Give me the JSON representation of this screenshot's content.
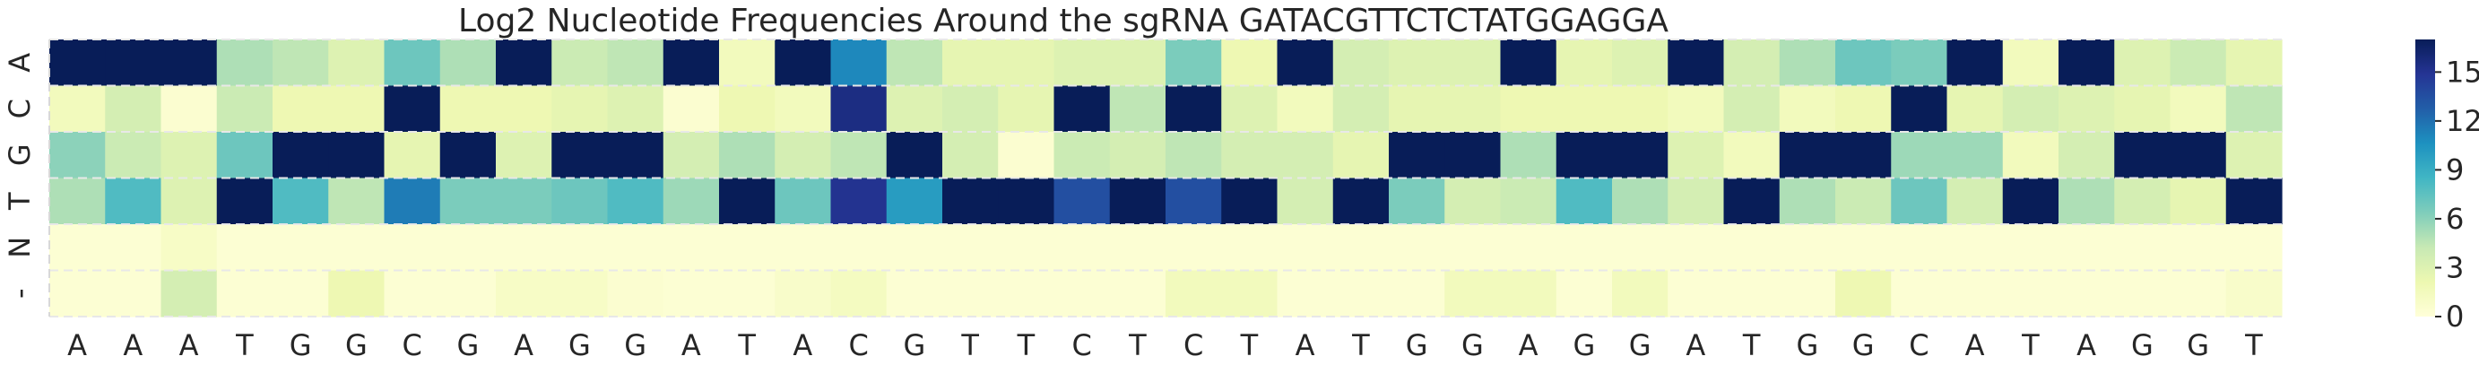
{
  "chart_data": {
    "type": "heatmap",
    "title": "Log2 Nucleotide Frequencies Around the sgRNA GATACGTTCTCTATGGAGGA",
    "xlabel": "",
    "ylabel": "",
    "x_tick_labels": [
      "A",
      "A",
      "A",
      "T",
      "G",
      "G",
      "C",
      "G",
      "A",
      "G",
      "G",
      "A",
      "T",
      "A",
      "C",
      "G",
      "T",
      "T",
      "C",
      "T",
      "C",
      "T",
      "A",
      "T",
      "G",
      "G",
      "A",
      "G",
      "G",
      "A",
      "T",
      "G",
      "G",
      "C",
      "A",
      "T",
      "A",
      "G",
      "G",
      "T"
    ],
    "y_tick_labels": [
      "A",
      "C",
      "G",
      "T",
      "N",
      "-"
    ],
    "colorbar": {
      "min": 0,
      "max": 17,
      "ticks": [
        0,
        3,
        6,
        9,
        12,
        15
      ],
      "tick_labels": [
        "0",
        "3",
        "6",
        "9",
        "12",
        "15"
      ],
      "colormap": "YlGnBu"
    },
    "values": [
      [
        17,
        17,
        17,
        5,
        4.5,
        3,
        7,
        5,
        17,
        4,
        4.5,
        17,
        1.5,
        17,
        11,
        4.5,
        2.5,
        2.5,
        3,
        3,
        6.5,
        2,
        17,
        3.5,
        3,
        3,
        17,
        2.5,
        3,
        17,
        3.5,
        5,
        7,
        6.5,
        17,
        1.5,
        17,
        3,
        4,
        2.5
      ],
      [
        1.5,
        3.5,
        0.5,
        4,
        2,
        2,
        17,
        2,
        2,
        2.5,
        3,
        0.5,
        2,
        1.5,
        15.5,
        3,
        3.5,
        2.5,
        17,
        4.5,
        17,
        3,
        1.5,
        3.5,
        2.5,
        2.5,
        2,
        2,
        2,
        1.5,
        3.5,
        1.5,
        2,
        17,
        2.5,
        3.5,
        3,
        2.5,
        1.5,
        4.5
      ],
      [
        6,
        4,
        3,
        7,
        17,
        17,
        2.5,
        17,
        3,
        17,
        17,
        3.5,
        5,
        3.5,
        4.5,
        17,
        3.5,
        0.5,
        4,
        3.5,
        4.5,
        3.5,
        3.5,
        2.5,
        17,
        17,
        5,
        17,
        17,
        3,
        1.5,
        17,
        17,
        5.5,
        5.5,
        1.5,
        3.5,
        17,
        17,
        3
      ],
      [
        5,
        8,
        3,
        17,
        8,
        4.5,
        11.5,
        6.5,
        6.5,
        7,
        8,
        5.5,
        17,
        7,
        15,
        10,
        17,
        17,
        13.5,
        17,
        13.5,
        17,
        3.5,
        17,
        6.5,
        3.5,
        4,
        8,
        5,
        3.5,
        17,
        5,
        4,
        7,
        3.5,
        17,
        5,
        3.5,
        2.5,
        17
      ],
      [
        0.3,
        0.3,
        1,
        0.3,
        0.3,
        0.3,
        0.3,
        0.3,
        0.3,
        0.3,
        0.3,
        0.3,
        0.3,
        0.3,
        0.3,
        0.3,
        0.3,
        0.3,
        0.3,
        0.3,
        0.3,
        0.3,
        0.3,
        0.3,
        0.3,
        0.3,
        0.3,
        0.3,
        0.3,
        0.3,
        0.3,
        0.3,
        0.3,
        0.3,
        0.3,
        0.3,
        0.3,
        0.3,
        0.3,
        0.3
      ],
      [
        0.3,
        0.3,
        3.5,
        0.3,
        0.3,
        2,
        0.3,
        0.3,
        1,
        1,
        0.5,
        0.3,
        0.3,
        0.8,
        1.3,
        0.3,
        0.3,
        0.3,
        0.3,
        0.3,
        1.5,
        1.5,
        0.3,
        0.3,
        0.3,
        1.5,
        1.5,
        0.3,
        1.5,
        0.3,
        0.3,
        0.3,
        2,
        0.3,
        0.3,
        0.3,
        0.3,
        0.3,
        0.3,
        0.8
      ]
    ]
  }
}
